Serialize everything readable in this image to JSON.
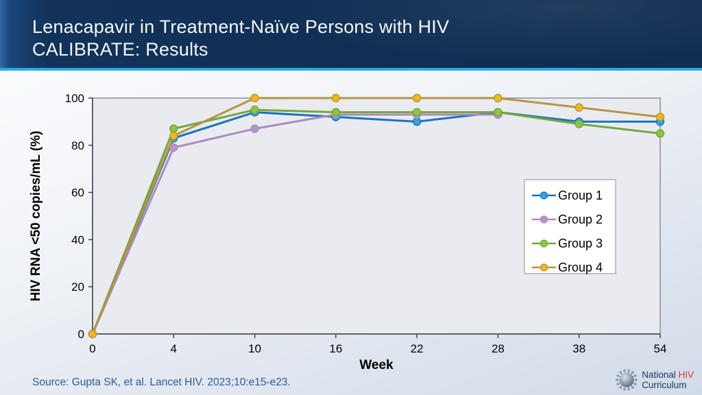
{
  "slide": {
    "title_line1": "Lenacapavir in Treatment-Naïve Persons with HIV",
    "title_line2": "CALIBRATE: Results",
    "source": "Source: Gupta SK, et al. Lancet HIV. 2023;10:e15-e23.",
    "logo": {
      "word1": "National",
      "word2": "HIV",
      "word3": "Curriculum"
    }
  },
  "colors": {
    "header_navy": "#112f55",
    "divider_cyan": "#29abe2",
    "plot_fill": "#e9ebf1",
    "plot_border": "#8a8f98",
    "axis": "#3f434b",
    "source_text": "#2a5d9c",
    "logo_navy": "#1b3a63",
    "logo_red": "#cf3a32"
  },
  "chart_data": {
    "type": "line",
    "title": "",
    "xlabel": "Week",
    "ylabel": "HIV RNA <50 copies/mL (%)",
    "categories": [
      "0",
      "4",
      "10",
      "16",
      "22",
      "28",
      "38",
      "54"
    ],
    "ylim": [
      0,
      100
    ],
    "yticks": [
      0,
      20,
      40,
      60,
      80,
      100
    ],
    "grid": false,
    "legend_position": "right-middle",
    "series": [
      {
        "name": "Group 1",
        "color": "#1a74bb",
        "marker": "#2aa7e0",
        "values": [
          0,
          83,
          94,
          92,
          90,
          94,
          90,
          90
        ]
      },
      {
        "name": "Group 2",
        "color": "#a98bbd",
        "marker": "#b495c5",
        "values": [
          0,
          79,
          87,
          93,
          93,
          93,
          null,
          null
        ]
      },
      {
        "name": "Group 3",
        "color": "#75a53c",
        "marker": "#8cc63f",
        "values": [
          0,
          87,
          95,
          94,
          94,
          94,
          89,
          85
        ]
      },
      {
        "name": "Group 4",
        "color": "#b5953f",
        "marker": "#f7b617",
        "values": [
          0,
          84,
          100,
          100,
          100,
          100,
          96,
          92
        ]
      }
    ]
  }
}
